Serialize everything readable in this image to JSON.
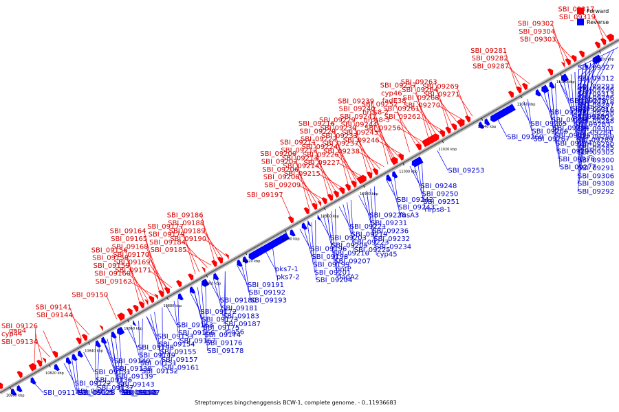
{
  "legend": {
    "forward_label": "Forward",
    "reverse_label": "Reverse",
    "forward_color": "#ff0000",
    "reverse_color": "#0000ff"
  },
  "caption": "Streptomyces bingchenggensis BCW-1, complete genome. - 0..11936683",
  "colors": {
    "forward": "#ff0000",
    "reverse": "#0000ff",
    "forward_text": "#d40000",
    "reverse_text": "#0000c8",
    "axis": "#999999"
  },
  "ruler": {
    "range_kbp": [
      10795,
      11110
    ],
    "ticks": [
      {
        "label": "10800 kbp",
        "kbp": 10800
      },
      {
        "label": "10820 kbp",
        "kbp": 10820
      },
      {
        "label": "10840 kbp",
        "kbp": 10840
      },
      {
        "label": "10860 kbp",
        "kbp": 10860
      },
      {
        "label": "10880 kbp",
        "kbp": 10880
      },
      {
        "label": "10900 kbp",
        "kbp": 10900
      },
      {
        "label": "10920 kbp",
        "kbp": 10920
      },
      {
        "label": "10940 kbp",
        "kbp": 10940
      },
      {
        "label": "10960 kbp",
        "kbp": 10960
      },
      {
        "label": "10980 kbp",
        "kbp": 10980
      },
      {
        "label": "11000 kbp",
        "kbp": 11000
      },
      {
        "label": "11020 kbp",
        "kbp": 11020
      },
      {
        "label": "11040 kbp",
        "kbp": 11040
      },
      {
        "label": "11060 kbp",
        "kbp": 11060
      },
      {
        "label": "11080 kbp",
        "kbp": 11080
      },
      {
        "label": "11100 kbp",
        "kbp": 11100
      }
    ]
  },
  "forward_labels": [
    {
      "text": "SBI_09268",
      "kbp": 11030
    },
    {
      "text": "SBI_09264",
      "kbp": 11027
    },
    {
      "text": "SBI_09263",
      "kbp": 11025
    },
    {
      "text": "SBI_09262",
      "kbp": 11023
    },
    {
      "text": "SBI_09261",
      "kbp": 11021
    },
    {
      "text": "fadE38",
      "kbp": 11019
    },
    {
      "text": "cyp46",
      "kbp": 11017
    },
    {
      "text": "SBI_09257",
      "kbp": 11015
    },
    {
      "text": "SBI_09256",
      "kbp": 11013
    },
    {
      "text": "nrps8-3",
      "kbp": 11011
    },
    {
      "text": "nrps8-2",
      "kbp": 11009
    },
    {
      "text": "SBI_09252",
      "kbp": 11005
    },
    {
      "text": "SBI_09270",
      "kbp": 11033
    },
    {
      "text": "SBI_09269",
      "kbp": 11035
    },
    {
      "text": "SBI_09271",
      "kbp": 11037
    },
    {
      "text": "SBI_09304",
      "kbp": 11086
    },
    {
      "text": "SBI_09319",
      "kbp": 11106
    },
    {
      "text": "SBI_09303",
      "kbp": 11088
    },
    {
      "text": "SBI_09317",
      "kbp": 11104
    },
    {
      "text": "SBI_09302",
      "kbp": 11084
    },
    {
      "text": "SBI_09287",
      "kbp": 11066
    },
    {
      "text": "SBI_09282",
      "kbp": 11062
    },
    {
      "text": "SBI_09281",
      "kbp": 11060
    },
    {
      "text": "SBI_09222",
      "kbp": 10978
    },
    {
      "text": "SBI_09240",
      "kbp": 10996
    },
    {
      "text": "SBI_09220",
      "kbp": 10976
    },
    {
      "text": "SBI_09239",
      "kbp": 10994
    },
    {
      "text": "SBI_09216",
      "kbp": 10974
    },
    {
      "text": "SBI_09238",
      "kbp": 10992
    },
    {
      "text": "SBI_09215",
      "kbp": 10972
    },
    {
      "text": "SBI_09237",
      "kbp": 10990
    },
    {
      "text": "SBI_09214",
      "kbp": 10970
    },
    {
      "text": "SBI_09233",
      "kbp": 10988
    },
    {
      "text": "SBI_09213",
      "kbp": 10968
    },
    {
      "text": "SBI_09230",
      "kbp": 10986
    },
    {
      "text": "SBI_09212",
      "kbp": 10966
    },
    {
      "text": "SBI_09229",
      "kbp": 10984
    },
    {
      "text": "SBI_09211",
      "kbp": 10964
    },
    {
      "text": "SBI_09227",
      "kbp": 10982
    },
    {
      "text": "SBI_09209",
      "kbp": 10962
    },
    {
      "text": "SBI_09226",
      "kbp": 10980
    },
    {
      "text": "SBI_09208",
      "kbp": 10960
    },
    {
      "text": "SBI_09224",
      "kbp": 10979
    },
    {
      "text": "SBI_09206",
      "kbp": 10958
    },
    {
      "text": "SBI_09202",
      "kbp": 10956
    },
    {
      "text": "SBI_09200",
      "kbp": 10954
    },
    {
      "text": "SBI_09245",
      "kbp": 11000
    },
    {
      "text": "SBI_09244",
      "kbp": 10998
    },
    {
      "text": "SBI_09246",
      "kbp": 11002
    },
    {
      "text": "SBI_09241",
      "kbp": 10997
    },
    {
      "text": "SBI_09197",
      "kbp": 10945
    },
    {
      "text": "SBI_09170",
      "kbp": 10882
    },
    {
      "text": "SBI_09186",
      "kbp": 10906
    },
    {
      "text": "SBI_09165",
      "kbp": 10880
    },
    {
      "text": "SBI_09185",
      "kbp": 10904
    },
    {
      "text": "SBI_09164",
      "kbp": 10878
    },
    {
      "text": "SBI_09184",
      "kbp": 10902
    },
    {
      "text": "SBI_09162",
      "kbp": 10876
    },
    {
      "text": "SBI_09179",
      "kbp": 10898
    },
    {
      "text": "SBI_09160",
      "kbp": 10874
    },
    {
      "text": "SBI_09177",
      "kbp": 10896
    },
    {
      "text": "SBI_09189",
      "kbp": 10910
    },
    {
      "text": "SBI_09159",
      "kbp": 10872
    },
    {
      "text": "SBI_09188",
      "kbp": 10908
    },
    {
      "text": "SBI_09158",
      "kbp": 10870
    },
    {
      "text": "SBI_09190",
      "kbp": 10912
    },
    {
      "text": "SBI_09156",
      "kbp": 10868
    },
    {
      "text": "SBI_09171",
      "kbp": 10884
    },
    {
      "text": "SBI_09169",
      "kbp": 10882
    },
    {
      "text": "SBI_09168",
      "kbp": 10880
    },
    {
      "text": "SBI_09150",
      "kbp": 10856
    },
    {
      "text": "SBI_09134",
      "kbp": 10822
    },
    {
      "text": "gap4",
      "kbp": 10824
    },
    {
      "text": "SBI_09144",
      "kbp": 10842
    },
    {
      "text": "cyp44",
      "kbp": 10818
    },
    {
      "text": "SBI_09141",
      "kbp": 10838
    },
    {
      "text": "SBI_09126",
      "kbp": 10814
    }
  ],
  "reverse_labels": [
    {
      "text": "SBI_09294",
      "kbp": 11072
    },
    {
      "text": "SBI_09295",
      "kbp": 11074
    },
    {
      "text": "SBI_09327",
      "kbp": 11108
    },
    {
      "text": "SBI_09316",
      "kbp": 11104
    },
    {
      "text": "SBI_09306",
      "kbp": 11096
    },
    {
      "text": "SBI_09325",
      "kbp": 11106
    },
    {
      "text": "SBI_09297",
      "kbp": 11090
    },
    {
      "text": "SBI_09312",
      "kbp": 11098
    },
    {
      "text": "SBI_09289",
      "kbp": 11086
    },
    {
      "text": "SBI_09318",
      "kbp": 11100
    },
    {
      "text": "SBI_09278",
      "kbp": 11078
    },
    {
      "text": "SBI_09301",
      "kbp": 11092
    },
    {
      "text": "SBI_09272",
      "kbp": 11068
    },
    {
      "text": "SBI_09273",
      "kbp": 11070
    },
    {
      "text": "SBI_09280",
      "kbp": 11080
    },
    {
      "text": "SBI_09305",
      "kbp": 11094
    },
    {
      "text": "SBI_09308",
      "kbp": 11096
    },
    {
      "text": "SBI_09283",
      "kbp": 11082
    },
    {
      "text": "SBI_09260",
      "kbp": 11046
    },
    {
      "text": "SBI_09265",
      "kbp": 11058
    },
    {
      "text": "SBI_09275",
      "kbp": 11072
    },
    {
      "text": "SBI_09296",
      "kbp": 11088
    },
    {
      "text": "SBI_09313",
      "kbp": 11099
    },
    {
      "text": "SBI_09276",
      "kbp": 11074
    },
    {
      "text": "SBI_09298",
      "kbp": 11090
    },
    {
      "text": "SBI_09266",
      "kbp": 11060
    },
    {
      "text": "SBI_09277",
      "kbp": 11076
    },
    {
      "text": "SBI_09299",
      "kbp": 11092
    },
    {
      "text": "SBI_09267",
      "kbp": 11062
    },
    {
      "text": "SBI_09274",
      "kbp": 11072
    },
    {
      "text": "SBI_09300",
      "kbp": 11094
    },
    {
      "text": "SBI_09279",
      "kbp": 11078
    },
    {
      "text": "SBI_09284",
      "kbp": 11084
    },
    {
      "text": "SBI_09285",
      "kbp": 11086
    },
    {
      "text": "SBI_09286",
      "kbp": 11088
    },
    {
      "text": "SBI_09288",
      "kbp": 11090
    },
    {
      "text": "SBI_09290",
      "kbp": 11092
    },
    {
      "text": "SBI_09291",
      "kbp": 11094
    },
    {
      "text": "SBI_09292",
      "kbp": 11096
    },
    {
      "text": "SBI_09293",
      "kbp": 11098
    },
    {
      "text": "SBI_09253",
      "kbp": 11016
    },
    {
      "text": "SBI_09243",
      "kbp": 10992
    },
    {
      "text": "nrps8-1",
      "kbp": 11008
    },
    {
      "text": "SBI_09250",
      "kbp": 11004
    },
    {
      "text": "fusA3",
      "kbp": 10994
    },
    {
      "text": "SBI_09251",
      "kbp": 11006
    },
    {
      "text": "SBI_09236",
      "kbp": 10980
    },
    {
      "text": "SBI_09242",
      "kbp": 10990
    },
    {
      "text": "SBI_09248",
      "kbp": 11002
    },
    {
      "text": "SBI_09223",
      "kbp": 10970
    },
    {
      "text": "SBI_09228",
      "kbp": 10976
    },
    {
      "text": "SBI_09210",
      "kbp": 10960
    },
    {
      "text": "SBI_09204",
      "kbp": 10954
    },
    {
      "text": "SBI_09219",
      "kbp": 10968
    },
    {
      "text": "SBI_09199",
      "kbp": 10950
    },
    {
      "text": "gntP",
      "kbp": 10962
    },
    {
      "text": "SBI_09225",
      "kbp": 10972
    },
    {
      "text": "pks7-2",
      "kbp": 10932
    },
    {
      "text": "dapA2",
      "kbp": 10964
    },
    {
      "text": "SBI_09231",
      "kbp": 10978
    },
    {
      "text": "pks7-1",
      "kbp": 10928
    },
    {
      "text": "SBI_09196",
      "kbp": 10946
    },
    {
      "text": "SBI_09221",
      "kbp": 10966
    },
    {
      "text": "SBI_09198",
      "kbp": 10948
    },
    {
      "text": "SBI_09232",
      "kbp": 10980
    },
    {
      "text": "SBI_09201",
      "kbp": 10952
    },
    {
      "text": "SBI_09234",
      "kbp": 10982
    },
    {
      "text": "SBI_09183",
      "kbp": 10904
    },
    {
      "text": "SBI_09191",
      "kbp": 10914
    },
    {
      "text": "SBI_09203",
      "kbp": 10956
    },
    {
      "text": "cyp45",
      "kbp": 10984
    },
    {
      "text": "SBI_09176",
      "kbp": 10896
    },
    {
      "text": "SBI_09187",
      "kbp": 10908
    },
    {
      "text": "SBI_09205",
      "kbp": 10958
    },
    {
      "text": "SBI_09167",
      "kbp": 10884
    },
    {
      "text": "SBI_09172",
      "kbp": 10890
    },
    {
      "text": "SBI_09207",
      "kbp": 10960
    },
    {
      "text": "SBI_09157",
      "kbp": 10872
    },
    {
      "text": "SBI_09166",
      "kbp": 10882
    },
    {
      "text": "SBI_09180",
      "kbp": 10900
    },
    {
      "text": "SBI_09192",
      "kbp": 10916
    },
    {
      "text": "SBI_09152",
      "kbp": 10866
    },
    {
      "text": "SBI_09178",
      "kbp": 10898
    },
    {
      "text": "SBI_09148",
      "kbp": 10858
    },
    {
      "text": "SBI_09161",
      "kbp": 10876
    },
    {
      "text": "SBI_09181",
      "kbp": 10902
    },
    {
      "text": "SBI_09193",
      "kbp": 10918
    },
    {
      "text": "SBI_09142",
      "kbp": 10850
    },
    {
      "text": "SBI_09151",
      "kbp": 10864
    },
    {
      "text": "SBI_09163",
      "kbp": 10878
    },
    {
      "text": "SBI_09136",
      "kbp": 10842
    },
    {
      "text": "SBI_09149",
      "kbp": 10860
    },
    {
      "text": "SBI_09173",
      "kbp": 10892
    },
    {
      "text": "SBI_09128",
      "kbp": 10832
    },
    {
      "text": "SBI_09140",
      "kbp": 10846
    },
    {
      "text": "SBI_09153",
      "kbp": 10868
    },
    {
      "text": "SBI_09174",
      "kbp": 10894
    },
    {
      "text": "SBI_09122",
      "kbp": 10826
    },
    {
      "text": "SBI_09137",
      "kbp": 10844
    },
    {
      "text": "SBI_09114",
      "kbp": 10810
    },
    {
      "text": "SBI_09125",
      "kbp": 10830
    },
    {
      "text": "SBI_09138",
      "kbp": 10846
    },
    {
      "text": "SBI_09146",
      "kbp": 10852
    },
    {
      "text": "SBI_09145",
      "kbp": 10850
    },
    {
      "text": "SBI_09139",
      "kbp": 10846
    },
    {
      "text": "SBI_09143",
      "kbp": 10848
    },
    {
      "text": "SBI_09131",
      "kbp": 10836
    },
    {
      "text": "SBI_09147",
      "kbp": 10854
    },
    {
      "text": "SBI_09123",
      "kbp": 10828
    },
    {
      "text": "sig56",
      "kbp": 10908
    },
    {
      "text": "SBI_09175",
      "kbp": 10892
    },
    {
      "text": "SBI_09155",
      "kbp": 10870
    },
    {
      "text": "SBI_09154",
      "kbp": 10868
    }
  ],
  "features": [
    {
      "strand": "+",
      "start": 10796,
      "end": 10798
    },
    {
      "strand": "+",
      "start": 10806,
      "end": 10808
    },
    {
      "strand": "+",
      "start": 10812,
      "end": 10815
    },
    {
      "strand": "+",
      "start": 10816,
      "end": 10818
    },
    {
      "strand": "+",
      "start": 10819,
      "end": 10820
    },
    {
      "strand": "+",
      "start": 10824,
      "end": 10826
    },
    {
      "strand": "+",
      "start": 10836,
      "end": 10838
    },
    {
      "strand": "+",
      "start": 10839,
      "end": 10841
    },
    {
      "strand": "+",
      "start": 10848,
      "end": 10849
    },
    {
      "strand": "+",
      "start": 10857,
      "end": 10860
    },
    {
      "strand": "+",
      "start": 10862,
      "end": 10864
    },
    {
      "strand": "+",
      "start": 10865,
      "end": 10867
    },
    {
      "strand": "+",
      "start": 10868,
      "end": 10870
    },
    {
      "strand": "+",
      "start": 10871,
      "end": 10872
    },
    {
      "strand": "+",
      "start": 10873,
      "end": 10875
    },
    {
      "strand": "+",
      "start": 10876,
      "end": 10877
    },
    {
      "strand": "+",
      "start": 10878,
      "end": 10880
    },
    {
      "strand": "+",
      "start": 10881,
      "end": 10883
    },
    {
      "strand": "+",
      "start": 10887,
      "end": 10889
    },
    {
      "strand": "+",
      "start": 10893,
      "end": 10895
    },
    {
      "strand": "+",
      "start": 10900,
      "end": 10901
    },
    {
      "strand": "+",
      "start": 10905,
      "end": 10907
    },
    {
      "strand": "+",
      "start": 10908,
      "end": 10910
    },
    {
      "strand": "+",
      "start": 10912,
      "end": 10913
    },
    {
      "strand": "+",
      "start": 10944,
      "end": 10946
    },
    {
      "strand": "+",
      "start": 10952,
      "end": 10954
    },
    {
      "strand": "+",
      "start": 10956,
      "end": 10958
    },
    {
      "strand": "+",
      "start": 10959,
      "end": 10960
    },
    {
      "strand": "+",
      "start": 10961,
      "end": 10963
    },
    {
      "strand": "+",
      "start": 10964,
      "end": 10966
    },
    {
      "strand": "+",
      "start": 10967,
      "end": 10969
    },
    {
      "strand": "+",
      "start": 10970,
      "end": 10972
    },
    {
      "strand": "+",
      "start": 10973,
      "end": 10975
    },
    {
      "strand": "+",
      "start": 10976,
      "end": 10978
    },
    {
      "strand": "+",
      "start": 10979,
      "end": 10983
    },
    {
      "strand": "+",
      "start": 10984,
      "end": 10986
    },
    {
      "strand": "+",
      "start": 10987,
      "end": 10989
    },
    {
      "strand": "+",
      "start": 10996,
      "end": 10999
    },
    {
      "strand": "+",
      "start": 11000,
      "end": 11002
    },
    {
      "strand": "+",
      "start": 11009,
      "end": 11011
    },
    {
      "strand": "+",
      "start": 11012,
      "end": 11020
    },
    {
      "strand": "+",
      "start": 11021,
      "end": 11023
    },
    {
      "strand": "+",
      "start": 11024,
      "end": 11026
    },
    {
      "strand": "+",
      "start": 11027,
      "end": 11029
    },
    {
      "strand": "+",
      "start": 11030,
      "end": 11033
    },
    {
      "strand": "+",
      "start": 11034,
      "end": 11036
    },
    {
      "strand": "+",
      "start": 11056,
      "end": 11058
    },
    {
      "strand": "+",
      "start": 11060,
      "end": 11062
    },
    {
      "strand": "+",
      "start": 11063,
      "end": 11065
    },
    {
      "strand": "+",
      "start": 11076,
      "end": 11078
    },
    {
      "strand": "+",
      "start": 11083,
      "end": 11084
    },
    {
      "strand": "+",
      "start": 11085,
      "end": 11087
    },
    {
      "strand": "+",
      "start": 11088,
      "end": 11090
    },
    {
      "strand": "+",
      "start": 11092,
      "end": 11094
    },
    {
      "strand": "+",
      "start": 11100,
      "end": 11102
    },
    {
      "strand": "+",
      "start": 11103,
      "end": 11105
    },
    {
      "strand": "+",
      "start": 11106,
      "end": 11109
    },
    {
      "strand": "-",
      "start": 10799,
      "end": 10801
    },
    {
      "strand": "-",
      "start": 10802,
      "end": 10804
    },
    {
      "strand": "-",
      "start": 10809,
      "end": 10811
    },
    {
      "strand": "-",
      "start": 10821,
      "end": 10823
    },
    {
      "strand": "-",
      "start": 10827,
      "end": 10829
    },
    {
      "strand": "-",
      "start": 10830,
      "end": 10832
    },
    {
      "strand": "-",
      "start": 10833,
      "end": 10835
    },
    {
      "strand": "-",
      "start": 10842,
      "end": 10844
    },
    {
      "strand": "-",
      "start": 10845,
      "end": 10847
    },
    {
      "strand": "-",
      "start": 10850,
      "end": 10852
    },
    {
      "strand": "-",
      "start": 10853,
      "end": 10856
    },
    {
      "strand": "-",
      "start": 10861,
      "end": 10862
    },
    {
      "strand": "-",
      "start": 10884,
      "end": 10886
    },
    {
      "strand": "-",
      "start": 10890,
      "end": 10892
    },
    {
      "strand": "-",
      "start": 10896,
      "end": 10899
    },
    {
      "strand": "-",
      "start": 10902,
      "end": 10904
    },
    {
      "strand": "-",
      "start": 10914,
      "end": 10916
    },
    {
      "strand": "-",
      "start": 10917,
      "end": 10919
    },
    {
      "strand": "-",
      "start": 10920,
      "end": 10940
    },
    {
      "strand": "-",
      "start": 10941,
      "end": 10943
    },
    {
      "strand": "-",
      "start": 10947,
      "end": 10949
    },
    {
      "strand": "-",
      "start": 10950,
      "end": 10951
    },
    {
      "strand": "-",
      "start": 10955,
      "end": 10956
    },
    {
      "strand": "-",
      "start": 10990,
      "end": 10992
    },
    {
      "strand": "-",
      "start": 10993,
      "end": 10995
    },
    {
      "strand": "-",
      "start": 11003,
      "end": 11008
    },
    {
      "strand": "-",
      "start": 11037,
      "end": 11039
    },
    {
      "strand": "-",
      "start": 11040,
      "end": 11042
    },
    {
      "strand": "-",
      "start": 11043,
      "end": 11055
    },
    {
      "strand": "-",
      "start": 11066,
      "end": 11068
    },
    {
      "strand": "-",
      "start": 11069,
      "end": 11072
    },
    {
      "strand": "-",
      "start": 11073,
      "end": 11075
    },
    {
      "strand": "-",
      "start": 11079,
      "end": 11082
    },
    {
      "strand": "-",
      "start": 11091,
      "end": 11092
    },
    {
      "strand": "-",
      "start": 11095,
      "end": 11099
    }
  ]
}
